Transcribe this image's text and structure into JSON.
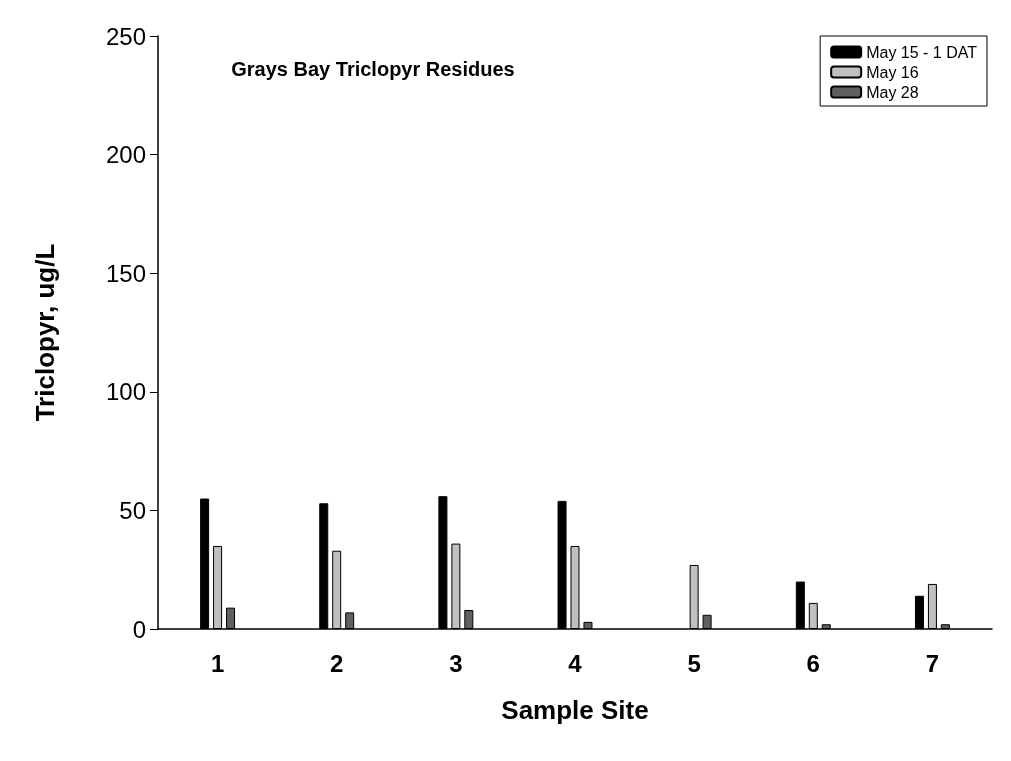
{
  "chart_data": {
    "type": "bar",
    "title": "Grays Bay Triclopyr Residues",
    "xlabel": "Sample Site",
    "ylabel": "Triclopyr, ug/L",
    "categories": [
      "1",
      "2",
      "3",
      "4",
      "5",
      "6",
      "7"
    ],
    "series": [
      {
        "name": "May 15 - 1 DAT",
        "color": "#000000",
        "values": [
          55,
          53,
          56,
          54,
          null,
          20,
          14
        ]
      },
      {
        "name": "May 16",
        "color": "#c0c0c0",
        "values": [
          35,
          33,
          36,
          35,
          27,
          11,
          19
        ]
      },
      {
        "name": "May 28",
        "color": "#606060",
        "values": [
          9,
          7,
          8,
          3,
          6,
          2,
          2
        ]
      }
    ],
    "ylim": [
      0,
      250
    ],
    "yticks": [
      0,
      50,
      100,
      150,
      200,
      250
    ],
    "grid": false,
    "legend": "top right"
  }
}
